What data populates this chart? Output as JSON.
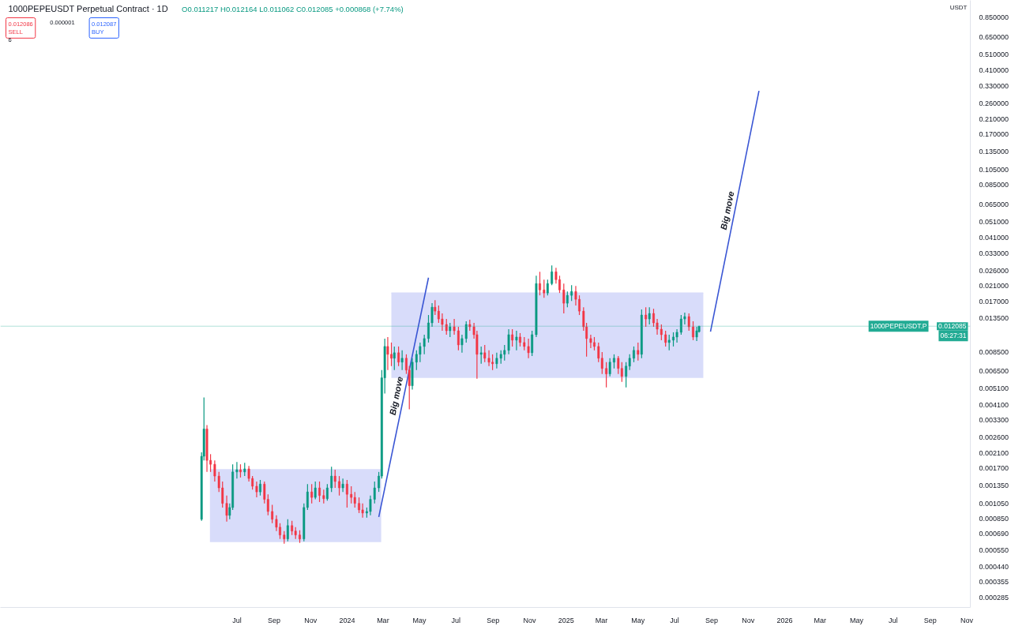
{
  "chart_data": {
    "type": "candlestick",
    "title": "1000PEPEUSDT Perpetual Contract · 1D",
    "subtitle": "O0.011217 H0.012164 L0.011062 C0.012085 +0.000868 (+7.74%)",
    "ylabel": "USDT",
    "log": "y",
    "xlim": [
      "2022-06-01",
      "2026-11-07"
    ],
    "ylim": [
      0.00025,
      1.08
    ],
    "xticks": [
      {
        "value": "2023-07-01",
        "label": "Jul"
      },
      {
        "value": "2023-09-01",
        "label": "Sep"
      },
      {
        "value": "2023-11-01",
        "label": "Nov"
      },
      {
        "value": "2024-01-01",
        "label": "2024"
      },
      {
        "value": "2024-03-01",
        "label": "Mar"
      },
      {
        "value": "2024-05-01",
        "label": "May"
      },
      {
        "value": "2024-07-01",
        "label": "Jul"
      },
      {
        "value": "2024-09-01",
        "label": "Sep"
      },
      {
        "value": "2024-11-01",
        "label": "Nov"
      },
      {
        "value": "2025-01-01",
        "label": "2025"
      },
      {
        "value": "2025-03-01",
        "label": "Mar"
      },
      {
        "value": "2025-05-01",
        "label": "May"
      },
      {
        "value": "2025-07-01",
        "label": "Jul"
      },
      {
        "value": "2025-09-01",
        "label": "Sep"
      },
      {
        "value": "2025-11-01",
        "label": "Nov"
      },
      {
        "value": "2026-01-01",
        "label": "2026"
      },
      {
        "value": "2026-03-01",
        "label": "Mar"
      },
      {
        "value": "2026-05-01",
        "label": "May"
      },
      {
        "value": "2026-07-01",
        "label": "Jul"
      },
      {
        "value": "2026-09-01",
        "label": "Sep"
      },
      {
        "value": "2026-11-01",
        "label": "Nov"
      }
    ],
    "yticks": [
      {
        "value": 0.000285,
        "label": "0.000285"
      },
      {
        "value": 0.000355,
        "label": "0.000355"
      },
      {
        "value": 0.00044,
        "label": "0.000440"
      },
      {
        "value": 0.00055,
        "label": "0.000550"
      },
      {
        "value": 0.00069,
        "label": "0.000690"
      },
      {
        "value": 0.00085,
        "label": "0.000850"
      },
      {
        "value": 0.00105,
        "label": "0.001050"
      },
      {
        "value": 0.00135,
        "label": "0.001350"
      },
      {
        "value": 0.0017,
        "label": "0.001700"
      },
      {
        "value": 0.0021,
        "label": "0.002100"
      },
      {
        "value": 0.0026,
        "label": "0.002600"
      },
      {
        "value": 0.0033,
        "label": "0.003300"
      },
      {
        "value": 0.0041,
        "label": "0.004100"
      },
      {
        "value": 0.0051,
        "label": "0.005100"
      },
      {
        "value": 0.0065,
        "label": "0.006500"
      },
      {
        "value": 0.0085,
        "label": "0.008500"
      },
      {
        "value": 0.0135,
        "label": "0.013500"
      },
      {
        "value": 0.017,
        "label": "0.017000"
      },
      {
        "value": 0.021,
        "label": "0.021000"
      },
      {
        "value": 0.026,
        "label": "0.026000"
      },
      {
        "value": 0.033,
        "label": "0.033000"
      },
      {
        "value": 0.041,
        "label": "0.041000"
      },
      {
        "value": 0.051,
        "label": "0.051000"
      },
      {
        "value": 0.065,
        "label": "0.065000"
      },
      {
        "value": 0.085,
        "label": "0.085000"
      },
      {
        "value": 0.105,
        "label": "0.105000"
      },
      {
        "value": 0.135,
        "label": "0.135000"
      },
      {
        "value": 0.17,
        "label": "0.170000"
      },
      {
        "value": 0.21,
        "label": "0.210000"
      },
      {
        "value": 0.26,
        "label": "0.260000"
      },
      {
        "value": 0.33,
        "label": "0.330000"
      },
      {
        "value": 0.41,
        "label": "0.410000"
      },
      {
        "value": 0.51,
        "label": "0.510000"
      },
      {
        "value": 0.65,
        "label": "0.650000"
      },
      {
        "value": 0.85,
        "label": "0.850000"
      }
    ],
    "x": [
      "2023-05-03",
      "2023-05-07",
      "2023-05-12",
      "2023-05-18",
      "2023-05-25",
      "2023-06-01",
      "2023-06-07",
      "2023-06-14",
      "2023-06-19",
      "2023-06-24",
      "2023-07-01",
      "2023-07-07",
      "2023-07-14",
      "2023-07-21",
      "2023-07-27",
      "2023-08-03",
      "2023-08-09",
      "2023-08-16",
      "2023-08-22",
      "2023-08-29",
      "2023-09-05",
      "2023-09-11",
      "2023-09-18",
      "2023-09-24",
      "2023-10-01",
      "2023-10-07",
      "2023-10-14",
      "2023-10-21",
      "2023-10-27",
      "2023-11-03",
      "2023-11-09",
      "2023-11-16",
      "2023-11-23",
      "2023-11-29",
      "2023-12-06",
      "2023-12-12",
      "2023-12-19",
      "2023-12-25",
      "2024-01-01",
      "2024-01-08",
      "2024-01-14",
      "2024-01-21",
      "2024-01-27",
      "2024-02-03",
      "2024-02-09",
      "2024-02-16",
      "2024-02-23",
      "2024-02-28",
      "2024-03-04",
      "2024-03-09",
      "2024-03-15",
      "2024-03-20",
      "2024-03-27",
      "2024-04-02",
      "2024-04-09",
      "2024-04-14",
      "2024-04-19",
      "2024-04-26",
      "2024-05-02",
      "2024-05-09",
      "2024-05-16",
      "2024-05-22",
      "2024-05-27",
      "2024-06-02",
      "2024-06-08",
      "2024-06-15",
      "2024-06-21",
      "2024-06-28",
      "2024-07-05",
      "2024-07-11",
      "2024-07-18",
      "2024-07-24",
      "2024-07-31",
      "2024-08-05",
      "2024-08-12",
      "2024-08-18",
      "2024-08-25",
      "2024-08-31",
      "2024-09-07",
      "2024-09-14",
      "2024-09-20",
      "2024-09-27",
      "2024-10-03",
      "2024-10-10",
      "2024-10-16",
      "2024-10-23",
      "2024-10-30",
      "2024-11-05",
      "2024-11-12",
      "2024-11-18",
      "2024-11-25",
      "2024-12-01",
      "2024-12-08",
      "2024-12-15",
      "2024-12-21",
      "2024-12-28",
      "2025-01-03",
      "2025-01-10",
      "2025-01-17",
      "2025-01-23",
      "2025-01-30",
      "2025-02-04",
      "2025-02-11",
      "2025-02-17",
      "2025-02-24",
      "2025-03-02",
      "2025-03-09",
      "2025-03-15",
      "2025-03-22",
      "2025-03-29",
      "2025-04-04",
      "2025-04-11",
      "2025-04-17",
      "2025-04-24",
      "2025-05-01",
      "2025-05-07",
      "2025-05-14",
      "2025-05-20",
      "2025-05-27",
      "2025-06-02",
      "2025-06-09",
      "2025-06-16",
      "2025-06-22",
      "2025-06-29",
      "2025-07-05",
      "2025-07-12",
      "2025-07-18",
      "2025-07-25",
      "2025-08-01",
      "2025-08-07",
      "2025-08-11"
    ],
    "ohlc": [
      [
        0.000843,
        0.00212,
        0.000825,
        0.00201
      ],
      [
        0.00201,
        0.00452,
        0.0019,
        0.00293
      ],
      [
        0.00293,
        0.00309,
        0.00162,
        0.0019
      ],
      [
        0.0019,
        0.00207,
        0.00162,
        0.0018
      ],
      [
        0.0018,
        0.0019,
        0.00142,
        0.00153
      ],
      [
        0.00153,
        0.00162,
        0.00123,
        0.0013
      ],
      [
        0.0013,
        0.00142,
        0.000992,
        0.00105
      ],
      [
        0.00105,
        0.00117,
        0.000816,
        0.00089
      ],
      [
        0.00089,
        0.00105,
        0.000843,
        0.000992
      ],
      [
        0.000992,
        0.0018,
        0.00096,
        0.00162
      ],
      [
        0.00162,
        0.00186,
        0.00148,
        0.00167
      ],
      [
        0.00167,
        0.0018,
        0.0015,
        0.00162
      ],
      [
        0.00162,
        0.00184,
        0.00153,
        0.00169
      ],
      [
        0.00169,
        0.00176,
        0.00142,
        0.00148
      ],
      [
        0.00148,
        0.00153,
        0.00127,
        0.00133
      ],
      [
        0.00133,
        0.00142,
        0.00114,
        0.00123
      ],
      [
        0.00123,
        0.00145,
        0.00117,
        0.00137
      ],
      [
        0.00137,
        0.00142,
        0.00105,
        0.00111
      ],
      [
        0.00111,
        0.00119,
        0.00089,
        0.000939
      ],
      [
        0.000939,
        0.00103,
        0.000799,
        0.000843
      ],
      [
        0.000843,
        0.00089,
        0.000717,
        0.000756
      ],
      [
        0.000756,
        0.000799,
        0.000643,
        0.000679
      ],
      [
        0.000679,
        0.000717,
        0.000602,
        0.000643
      ],
      [
        0.000643,
        0.000843,
        0.000622,
        0.000773
      ],
      [
        0.000773,
        0.000825,
        0.000679,
        0.000717
      ],
      [
        0.000717,
        0.000756,
        0.000643,
        0.000679
      ],
      [
        0.000679,
        0.000725,
        0.000609,
        0.000643
      ],
      [
        0.000643,
        0.00105,
        0.000622,
        0.000992
      ],
      [
        0.000992,
        0.00137,
        0.00096,
        0.00123
      ],
      [
        0.00123,
        0.00137,
        0.00105,
        0.00114
      ],
      [
        0.00114,
        0.00142,
        0.00111,
        0.0013
      ],
      [
        0.0013,
        0.00142,
        0.00107,
        0.00117
      ],
      [
        0.00117,
        0.00127,
        0.00105,
        0.00112
      ],
      [
        0.00112,
        0.00137,
        0.00109,
        0.0013
      ],
      [
        0.0013,
        0.00174,
        0.00123,
        0.00153
      ],
      [
        0.00153,
        0.00167,
        0.0013,
        0.00142
      ],
      [
        0.00142,
        0.00153,
        0.00117,
        0.0013
      ],
      [
        0.0013,
        0.00148,
        0.00123,
        0.00137
      ],
      [
        0.00137,
        0.00145,
        0.000992,
        0.00119
      ],
      [
        0.00119,
        0.00133,
        0.00105,
        0.00114
      ],
      [
        0.00114,
        0.00123,
        0.000992,
        0.00105
      ],
      [
        0.00105,
        0.00114,
        0.000919,
        0.00096
      ],
      [
        0.00096,
        0.00105,
        0.000862,
        0.000919
      ],
      [
        0.000919,
        0.000992,
        0.000862,
        0.000939
      ],
      [
        0.000939,
        0.00117,
        0.00089,
        0.00111
      ],
      [
        0.00111,
        0.00142,
        0.00105,
        0.0013
      ],
      [
        0.0013,
        0.00162,
        0.00123,
        0.00153
      ],
      [
        0.00153,
        0.0066,
        0.00148,
        0.00593
      ],
      [
        0.00593,
        0.01019,
        0.00477,
        0.00914
      ],
      [
        0.00914,
        0.01041,
        0.0066,
        0.0082
      ],
      [
        0.0082,
        0.00965,
        0.00697,
        0.00777
      ],
      [
        0.00777,
        0.00914,
        0.0066,
        0.00838
      ],
      [
        0.00838,
        0.00914,
        0.00697,
        0.00736
      ],
      [
        0.00736,
        0.00866,
        0.0066,
        0.00777
      ],
      [
        0.00777,
        0.0082,
        0.00626,
        0.0066
      ],
      [
        0.0066,
        0.00697,
        0.00384,
        0.00532
      ],
      [
        0.00532,
        0.00777,
        0.00504,
        0.00736
      ],
      [
        0.00736,
        0.00866,
        0.0066,
        0.0082
      ],
      [
        0.0082,
        0.00965,
        0.00736,
        0.00914
      ],
      [
        0.00914,
        0.01075,
        0.0082,
        0.01019
      ],
      [
        0.01019,
        0.0141,
        0.00965,
        0.01265
      ],
      [
        0.01265,
        0.01659,
        0.01198,
        0.01571
      ],
      [
        0.01571,
        0.01732,
        0.0141,
        0.01488
      ],
      [
        0.01488,
        0.01606,
        0.01265,
        0.01335
      ],
      [
        0.01335,
        0.01441,
        0.01135,
        0.01238
      ],
      [
        0.01238,
        0.01335,
        0.01075,
        0.01135
      ],
      [
        0.01135,
        0.01265,
        0.01041,
        0.01198
      ],
      [
        0.01198,
        0.01335,
        0.01075,
        0.01135
      ],
      [
        0.01135,
        0.01198,
        0.00866,
        0.00934
      ],
      [
        0.00934,
        0.01075,
        0.00838,
        0.01019
      ],
      [
        0.01019,
        0.01293,
        0.00965,
        0.01238
      ],
      [
        0.01238,
        0.01321,
        0.01135,
        0.01198
      ],
      [
        0.01198,
        0.01265,
        0.01019,
        0.01075
      ],
      [
        0.01075,
        0.01135,
        0.00586,
        0.0082
      ],
      [
        0.0082,
        0.00914,
        0.0072,
        0.00838
      ],
      [
        0.00838,
        0.00934,
        0.00736,
        0.00777
      ],
      [
        0.00777,
        0.00866,
        0.00697,
        0.00736
      ],
      [
        0.00736,
        0.0082,
        0.0066,
        0.0072
      ],
      [
        0.0072,
        0.00838,
        0.00675,
        0.00777
      ],
      [
        0.00777,
        0.00866,
        0.0072,
        0.0082
      ],
      [
        0.0082,
        0.00934,
        0.00752,
        0.00866
      ],
      [
        0.00866,
        0.0116,
        0.0082,
        0.01075
      ],
      [
        0.01075,
        0.0116,
        0.00914,
        0.00997
      ],
      [
        0.00997,
        0.01135,
        0.00866,
        0.01041
      ],
      [
        0.01041,
        0.01099,
        0.00914,
        0.00965
      ],
      [
        0.00965,
        0.01041,
        0.00866,
        0.00914
      ],
      [
        0.00914,
        0.01019,
        0.00777,
        0.00838
      ],
      [
        0.00838,
        0.01135,
        0.00802,
        0.01075
      ],
      [
        0.01075,
        0.02424,
        0.01041,
        0.02175
      ],
      [
        0.02175,
        0.02559,
        0.01849,
        0.01994
      ],
      [
        0.01994,
        0.02296,
        0.0179,
        0.0191
      ],
      [
        0.0191,
        0.02296,
        0.01849,
        0.02175
      ],
      [
        0.02175,
        0.0279,
        0.02128,
        0.02559
      ],
      [
        0.02559,
        0.02701,
        0.02175,
        0.02296
      ],
      [
        0.02296,
        0.02424,
        0.0191,
        0.01994
      ],
      [
        0.01994,
        0.02175,
        0.01441,
        0.01659
      ],
      [
        0.01659,
        0.01951,
        0.01571,
        0.01849
      ],
      [
        0.01849,
        0.02128,
        0.01713,
        0.01951
      ],
      [
        0.01951,
        0.02105,
        0.01606,
        0.01751
      ],
      [
        0.01751,
        0.01849,
        0.0141,
        0.01488
      ],
      [
        0.01488,
        0.01571,
        0.01135,
        0.01198
      ],
      [
        0.01198,
        0.01265,
        0.00794,
        0.01019
      ],
      [
        0.01019,
        0.01075,
        0.00894,
        0.00965
      ],
      [
        0.00965,
        0.01041,
        0.00866,
        0.00914
      ],
      [
        0.00914,
        0.00965,
        0.00736,
        0.00777
      ],
      [
        0.00777,
        0.00847,
        0.00626,
        0.00675
      ],
      [
        0.00675,
        0.00736,
        0.0052,
        0.00626
      ],
      [
        0.00626,
        0.00777,
        0.00605,
        0.00736
      ],
      [
        0.00736,
        0.0082,
        0.00675,
        0.00777
      ],
      [
        0.00777,
        0.00802,
        0.00626,
        0.00675
      ],
      [
        0.00675,
        0.00736,
        0.00561,
        0.00605
      ],
      [
        0.00605,
        0.00736,
        0.0052,
        0.00697
      ],
      [
        0.00697,
        0.0082,
        0.0066,
        0.00777
      ],
      [
        0.00777,
        0.00914,
        0.00736,
        0.00866
      ],
      [
        0.00866,
        0.00965,
        0.00752,
        0.0082
      ],
      [
        0.0082,
        0.01521,
        0.00777,
        0.0141
      ],
      [
        0.0141,
        0.01571,
        0.01198,
        0.01335
      ],
      [
        0.01335,
        0.01571,
        0.01238,
        0.01441
      ],
      [
        0.01441,
        0.01537,
        0.01198,
        0.01265
      ],
      [
        0.01265,
        0.01335,
        0.01075,
        0.0116
      ],
      [
        0.0116,
        0.01238,
        0.00997,
        0.01075
      ],
      [
        0.01075,
        0.01135,
        0.00914,
        0.00965
      ],
      [
        0.00965,
        0.01075,
        0.00866,
        0.00997
      ],
      [
        0.00997,
        0.01111,
        0.00914,
        0.01041
      ],
      [
        0.01041,
        0.0116,
        0.00965,
        0.01111
      ],
      [
        0.01111,
        0.0141,
        0.01075,
        0.01335
      ],
      [
        0.01335,
        0.01456,
        0.01238,
        0.0138
      ],
      [
        0.0138,
        0.01441,
        0.01135,
        0.01198
      ],
      [
        0.01198,
        0.01293,
        0.00997,
        0.01041
      ],
      [
        0.01041,
        0.01198,
        0.00986,
        0.01135
      ],
      [
        0.011217,
        0.012164,
        0.011062,
        0.012085
      ]
    ],
    "colors": [
      "#089981",
      "#089981",
      "#f23645",
      "#f23645",
      "#f23645",
      "#f23645",
      "#f23645",
      "#f23645",
      "#089981",
      "#089981",
      "#089981",
      "#f23645",
      "#089981",
      "#f23645",
      "#f23645",
      "#f23645",
      "#089981",
      "#f23645",
      "#f23645",
      "#f23645",
      "#f23645",
      "#f23645",
      "#f23645",
      "#089981",
      "#f23645",
      "#f23645",
      "#f23645",
      "#089981",
      "#089981",
      "#f23645",
      "#089981",
      "#f23645",
      "#f23645",
      "#089981",
      "#089981",
      "#f23645",
      "#f23645",
      "#089981",
      "#f23645",
      "#f23645",
      "#f23645",
      "#f23645",
      "#f23645",
      "#089981",
      "#089981",
      "#089981",
      "#089981",
      "#089981",
      "#089981",
      "#f23645",
      "#f23645",
      "#089981",
      "#f23645",
      "#089981",
      "#f23645",
      "#f23645",
      "#089981",
      "#089981",
      "#089981",
      "#089981",
      "#089981",
      "#089981",
      "#f23645",
      "#f23645",
      "#f23645",
      "#f23645",
      "#089981",
      "#f23645",
      "#f23645",
      "#089981",
      "#089981",
      "#f23645",
      "#f23645",
      "#f23645",
      "#089981",
      "#f23645",
      "#f23645",
      "#f23645",
      "#089981",
      "#089981",
      "#089981",
      "#089981",
      "#f23645",
      "#089981",
      "#f23645",
      "#f23645",
      "#f23645",
      "#089981",
      "#089981",
      "#f23645",
      "#f23645",
      "#089981",
      "#089981",
      "#f23645",
      "#f23645",
      "#f23645",
      "#089981",
      "#089981",
      "#f23645",
      "#f23645",
      "#f23645",
      "#f23645",
      "#f23645",
      "#f23645",
      "#f23645",
      "#f23645",
      "#f23645",
      "#089981",
      "#089981",
      "#f23645",
      "#f23645",
      "#089981",
      "#089981",
      "#089981",
      "#f23645",
      "#089981",
      "#f23645",
      "#089981",
      "#f23645",
      "#f23645",
      "#f23645",
      "#f23645",
      "#089981",
      "#089981",
      "#089981",
      "#089981",
      "#089981",
      "#f23645",
      "#f23645",
      "#089981",
      "#089981"
    ],
    "series": [
      {
        "type": "line",
        "color": "#d8dcfa",
        "x": [
          "2023-05-17",
          "2024-02-27"
        ],
        "values": [
          0.00167,
          0.00167
        ],
        "lower": [
          0.000615,
          0.000615
        ],
        "upper": [
          0.00167,
          0.00167
        ]
      },
      {
        "type": "line",
        "color": "#d8dcfa",
        "x": [
          "2024-03-15",
          "2025-08-18"
        ],
        "values": [
          0.0191,
          0.0191
        ],
        "lower": [
          0.00593,
          0.00593
        ],
        "upper": [
          0.0191,
          0.0191
        ]
      },
      {
        "type": "line",
        "color": "#3a56d4",
        "x": [
          "2024-02-23",
          "2024-05-16"
        ],
        "values": [
          0.00087,
          0.0236
        ]
      },
      {
        "type": "line",
        "color": "#3a56d4",
        "x": [
          "2025-08-30",
          "2025-11-19"
        ],
        "values": [
          0.0112,
          0.31
        ]
      }
    ],
    "ref_lines": [
      {
        "axis": "y",
        "value": 0.012085,
        "label": "1000PEPEUSDT.P",
        "color": "#22ab94"
      }
    ],
    "annotations": [
      {
        "text": "Big move",
        "x": "2024-04-05",
        "y": 0.00462
      },
      {
        "text": "Big move",
        "x": "2025-10-10",
        "y": 0.0595
      },
      {
        "text": "0.012085",
        "y": 0.012085
      },
      {
        "text": "06:27:31",
        "y": 0.012085
      },
      "0.012086\nSELL",
      "0.000001",
      "0.012087\nBUY",
      "6"
    ]
  }
}
